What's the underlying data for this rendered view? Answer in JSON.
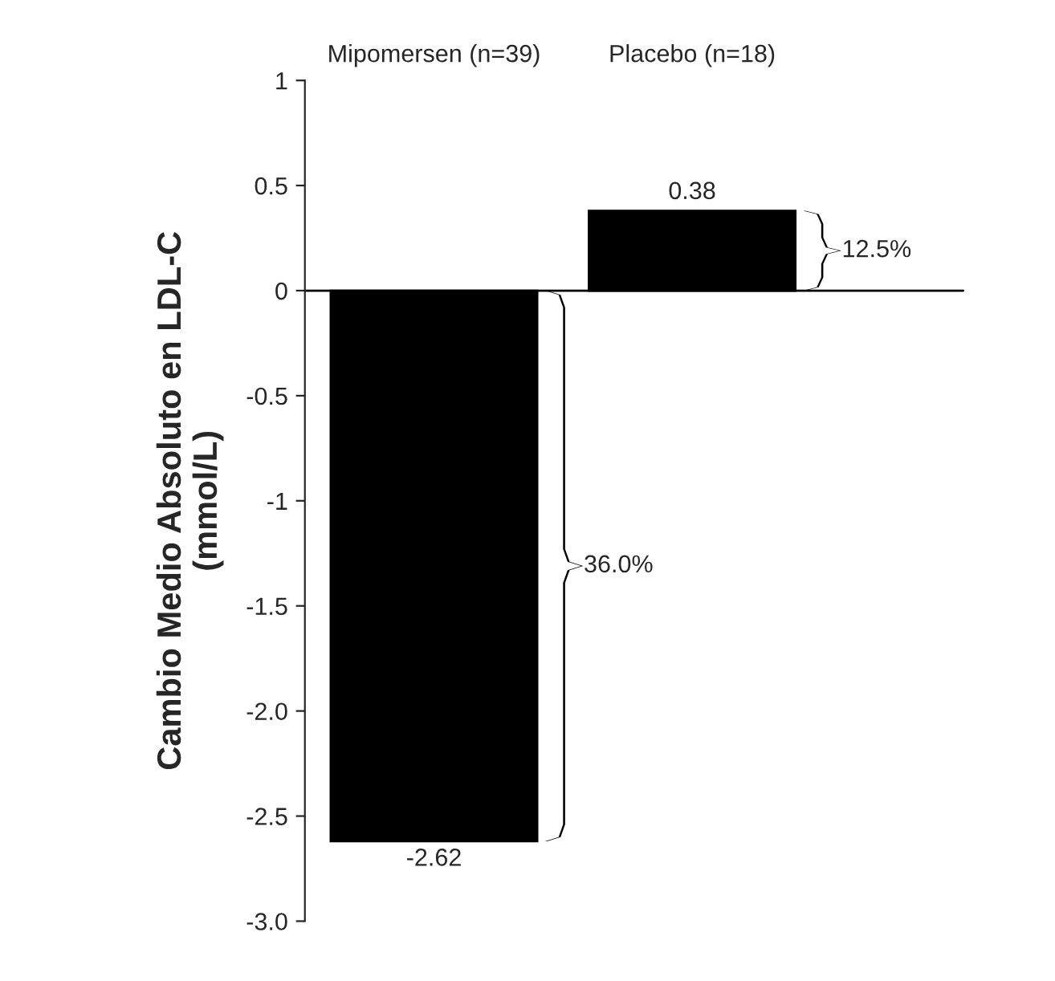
{
  "chart_data": {
    "type": "bar",
    "ylabel": "Cambio Medio Absoluto en LDL-C\n(mmol/L)",
    "categories": [
      "Mipomersen (n=39)",
      "Placebo (n=18)"
    ],
    "values": [
      -2.62,
      0.38
    ],
    "color": "#000000",
    "data_labels": true,
    "ylim": [
      -3.0,
      1
    ],
    "yticks": [
      1,
      0.5,
      0,
      -0.5,
      -1,
      -1.5,
      {
        "value": -2,
        "label": "-2.0"
      },
      -2.5,
      {
        "value": -3,
        "label": "-3.0"
      }
    ],
    "annotations": [
      "36.0%",
      "12.5%"
    ],
    "ref_lines": [
      {
        "axis": "y",
        "value": 0
      }
    ],
    "grid": false
  }
}
